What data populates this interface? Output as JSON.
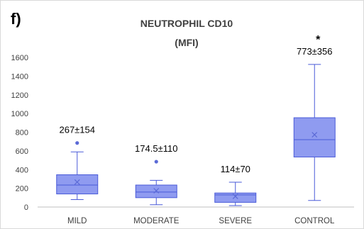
{
  "panel_label": "f)",
  "chart_data": {
    "type": "box",
    "title_lines": [
      "NEUTROPHIL CD10",
      "(MFI)"
    ],
    "xlabel": "",
    "ylabel": "",
    "ylim": [
      0,
      1600
    ],
    "yticks": [
      0,
      200,
      400,
      600,
      800,
      1000,
      1200,
      1400,
      1600
    ],
    "grid": false,
    "categories": [
      "MILD",
      "MODERATE",
      "SEVERE",
      "CONTROL"
    ],
    "boxes": [
      {
        "category": "MILD",
        "min": 80,
        "q1": 140,
        "median": 235,
        "q3": 345,
        "max": 590,
        "mean": 267,
        "outliers": [
          685
        ],
        "annotation": "267±154",
        "significance": ""
      },
      {
        "category": "MODERATE",
        "min": 25,
        "q1": 100,
        "median": 160,
        "q3": 235,
        "max": 285,
        "mean": 174.5,
        "outliers": [
          485
        ],
        "annotation": "174.5±110",
        "significance": ""
      },
      {
        "category": "SEVERE",
        "min": 15,
        "q1": 50,
        "median": 130,
        "q3": 150,
        "max": 265,
        "mean": 114,
        "outliers": [],
        "annotation": "114±70",
        "significance": ""
      },
      {
        "category": "CONTROL",
        "min": 70,
        "q1": 535,
        "median": 720,
        "q3": 955,
        "max": 1525,
        "mean": 773,
        "outliers": [],
        "annotation": "773±356",
        "significance": "*"
      }
    ],
    "colors": {
      "box_fill": "#8f9bf0",
      "box_stroke": "#4a5bd8",
      "mean_marker": "#5b6ad6",
      "axis": "#bfbfbf",
      "text": "#404040"
    }
  }
}
